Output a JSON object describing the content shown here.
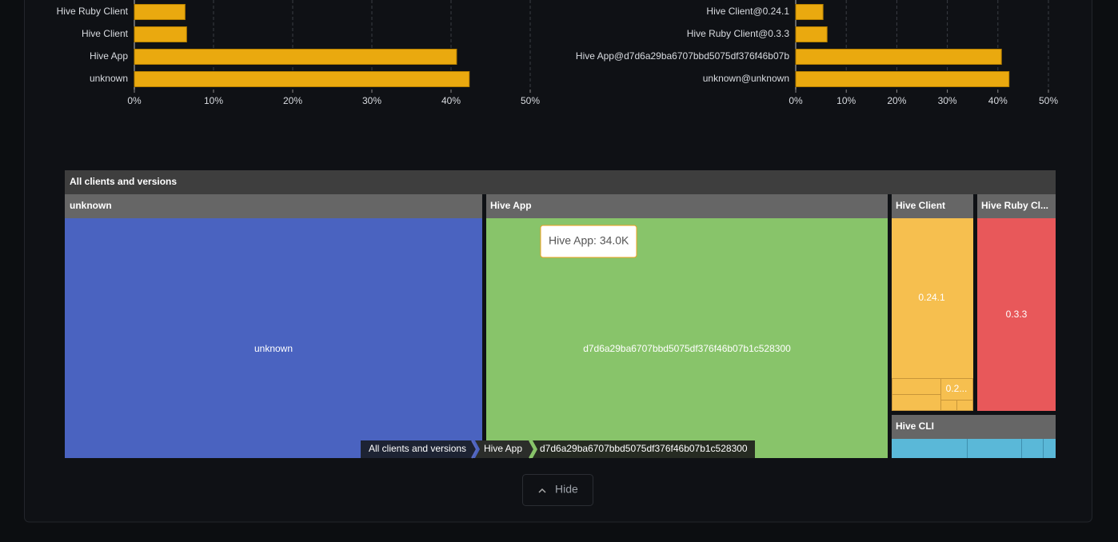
{
  "chart_data": [
    {
      "type": "bar",
      "orientation": "horizontal",
      "categories": [
        "Hive Ruby Client",
        "Hive Client",
        "Hive App",
        "unknown"
      ],
      "values": [
        6.4,
        6.6,
        40.7,
        42.3
      ],
      "color": "#eaa90f",
      "xlim": [
        0,
        50
      ],
      "xticks": [
        {
          "value": 0,
          "label": "0%"
        },
        {
          "value": 10,
          "label": "10%"
        },
        {
          "value": 20,
          "label": "20%"
        },
        {
          "value": 30,
          "label": "30%"
        },
        {
          "value": 40,
          "label": "40%"
        },
        {
          "value": 50,
          "label": "50%"
        }
      ],
      "grid": true
    },
    {
      "type": "bar",
      "orientation": "horizontal",
      "categories": [
        "Hive Client@0.24.1",
        "Hive Ruby Client@0.3.3",
        "Hive App@d7d6a29ba6707bbd5075df376f46b07b",
        "unknown@unknown"
      ],
      "values": [
        5.4,
        6.2,
        40.7,
        42.2
      ],
      "color": "#eaa90f",
      "xlim": [
        0,
        50
      ],
      "xticks": [
        {
          "value": 0,
          "label": "0%"
        },
        {
          "value": 10,
          "label": "10%"
        },
        {
          "value": 20,
          "label": "20%"
        },
        {
          "value": 30,
          "label": "30%"
        },
        {
          "value": 40,
          "label": "40%"
        },
        {
          "value": 50,
          "label": "50%"
        }
      ],
      "grid": true
    }
  ],
  "treemap": {
    "title": "All clients and versions",
    "groups": [
      {
        "name": "unknown",
        "children": [
          "unknown"
        ]
      },
      {
        "name": "Hive App",
        "children": [
          "d7d6a29ba6707bbd5075df376f46b07b1c528300"
        ]
      },
      {
        "name": "Hive Client",
        "children": [
          "0.24.1",
          "0.2..."
        ]
      },
      {
        "name": "Hive Ruby Cl...",
        "children": [
          "0.3.3"
        ]
      },
      {
        "name": "Hive CLI",
        "children": []
      }
    ],
    "tooltip": "Hive App: 34.0K",
    "breadcrumb": [
      "All clients and versions",
      "Hive App",
      "d7d6a29ba6707bbd5075df376f46b07b1c528300"
    ]
  },
  "button": "Hide"
}
